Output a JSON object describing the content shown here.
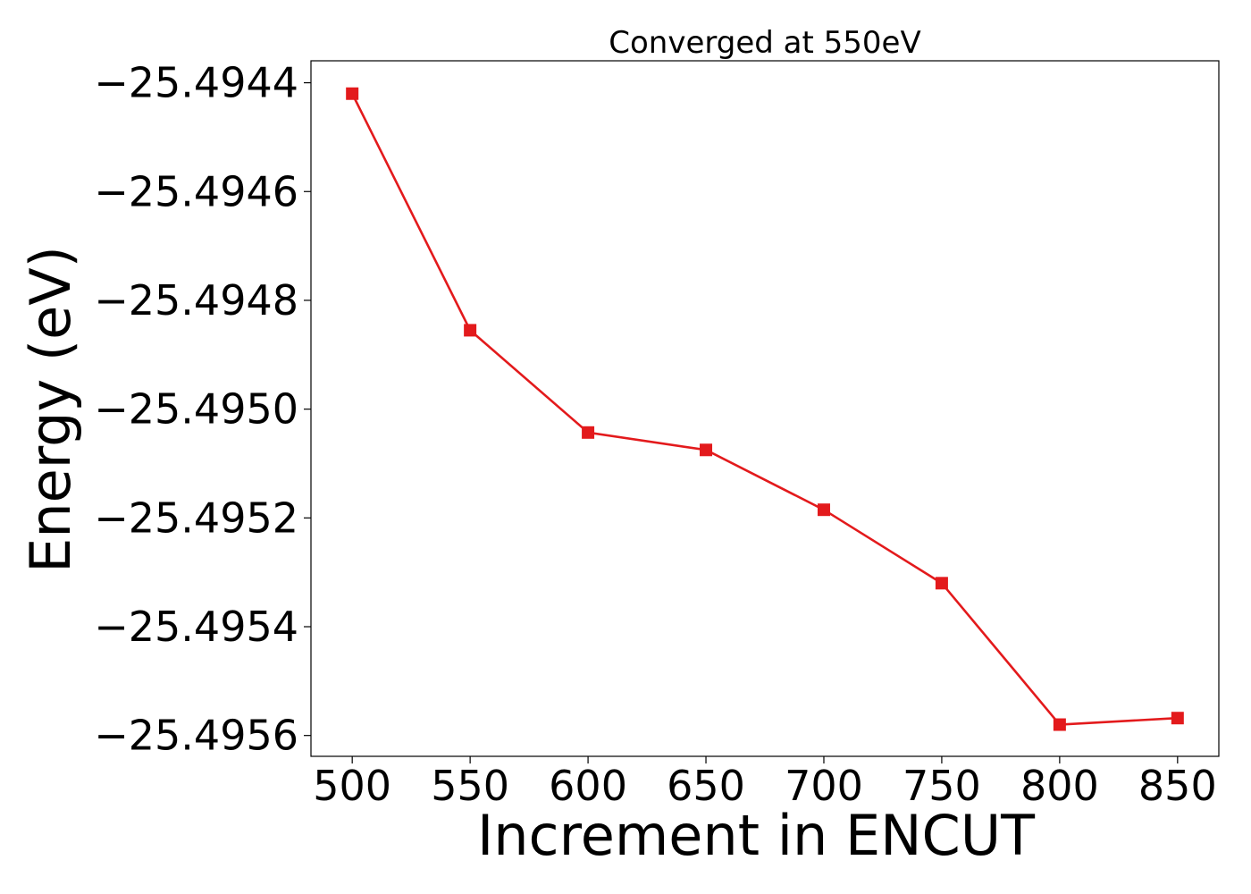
{
  "chart_data": {
    "type": "line",
    "title": "Converged at 550eV",
    "xlabel": "Increment in ENCUT",
    "ylabel": "Energy (eV)",
    "x": [
      500,
      550,
      600,
      650,
      700,
      750,
      800,
      850
    ],
    "series": [
      {
        "values": [
          -25.49442,
          -25.494855,
          -25.495043,
          -25.495075,
          -25.495185,
          -25.49532,
          -25.49558,
          -25.495568
        ],
        "color": "#e31a1c",
        "marker": "square"
      }
    ],
    "xticks": [
      500,
      550,
      600,
      650,
      700,
      750,
      800,
      850
    ],
    "xtick_labels": [
      "500",
      "550",
      "600",
      "650",
      "700",
      "750",
      "800",
      "850"
    ],
    "yticks": [
      -25.4944,
      -25.4946,
      -25.4948,
      -25.495,
      -25.4952,
      -25.4954,
      -25.4956
    ],
    "ytick_labels": [
      "−25.4944",
      "−25.4946",
      "−25.4948",
      "−25.4950",
      "−25.4952",
      "−25.4954",
      "−25.4956"
    ],
    "xlim": [
      482.5,
      867.5
    ],
    "ylim": [
      -25.4956383,
      -25.4943596
    ],
    "grid": false,
    "legend": "none"
  }
}
